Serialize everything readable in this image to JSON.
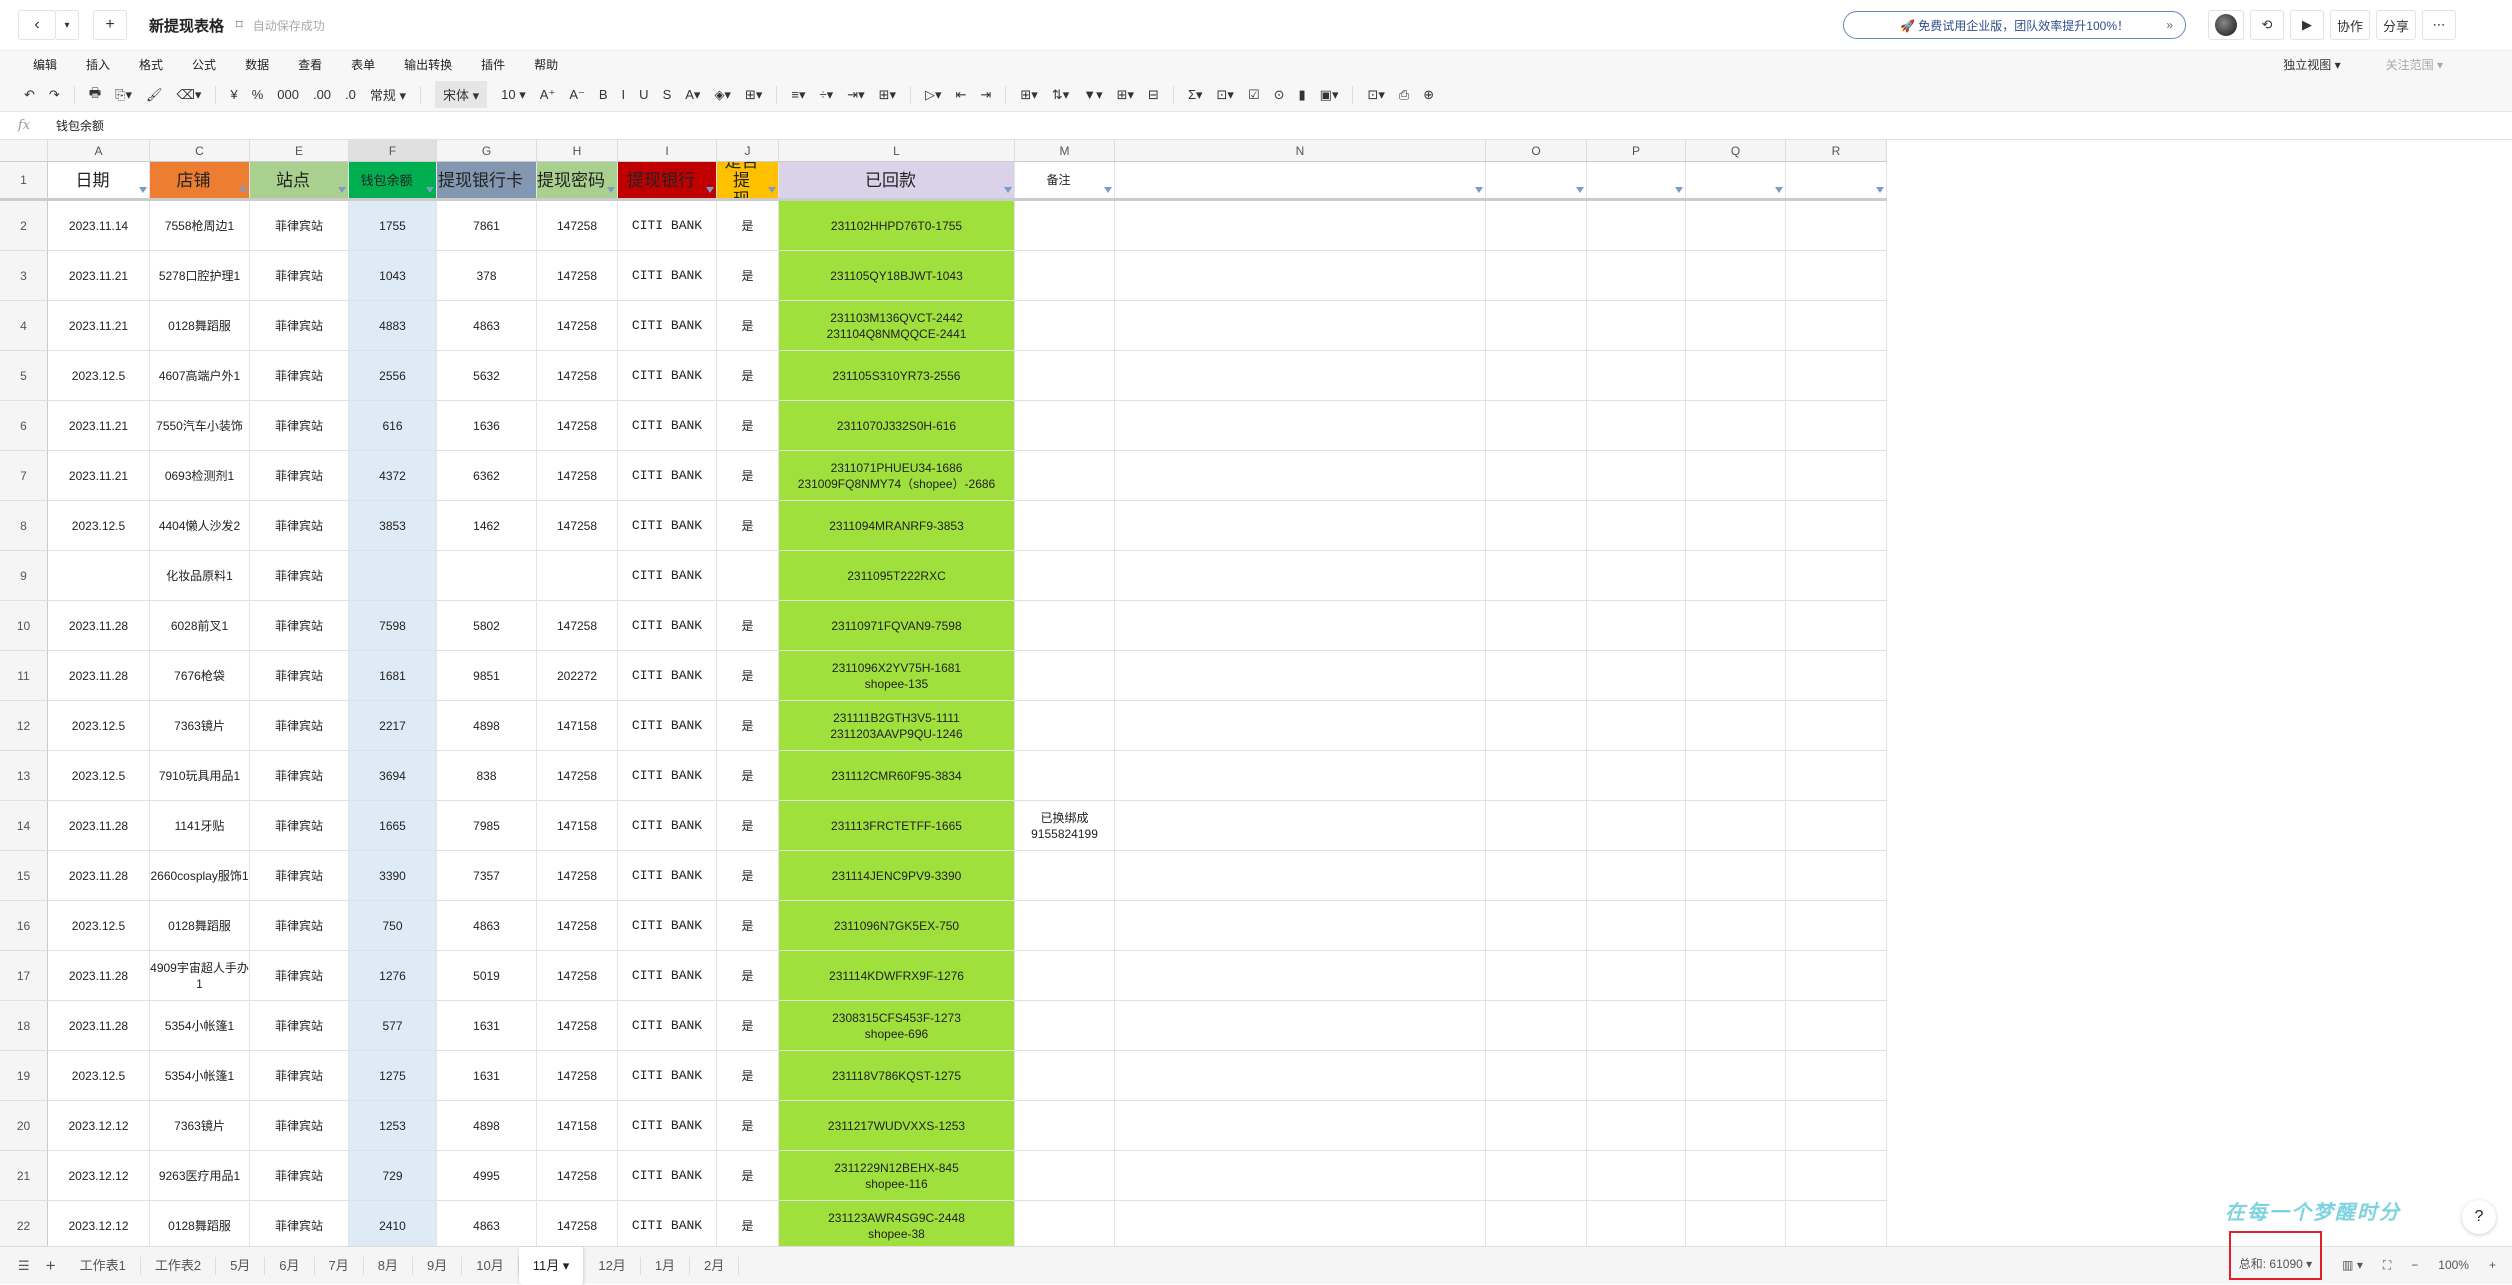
{
  "app": {
    "title": "新提现表格",
    "save_status": "自动保存成功",
    "back_icon": "‹",
    "dropdown_icon": "▾",
    "new_icon": "+",
    "bookmark_icon": "⌑"
  },
  "promo": {
    "text": "🚀 免费试用企业版，团队效率提升100%！",
    "arrow": "»"
  },
  "right_tools": {
    "history_icon": "⟲",
    "play_icon": "▶",
    "collab": "协作",
    "share": "分享",
    "more_icon": "⋯"
  },
  "menu": {
    "items": [
      "编辑",
      "插入",
      "格式",
      "公式",
      "数据",
      "查看",
      "表单",
      "输出转换",
      "插件",
      "帮助"
    ],
    "view": "独立视图 ▾",
    "focus": "关注范围 ▾"
  },
  "toolbar": {
    "items": [
      "↶",
      "↷",
      "|",
      "🖶",
      "⎘▾",
      "🖌",
      "⌫▾",
      "|",
      "¥",
      "%",
      "000",
      ".00",
      ".0",
      "常规 ▾",
      "|"
    ],
    "font": "宋体 ▾",
    "size": "10 ▾",
    "items2": [
      "A⁺",
      "A⁻",
      "B",
      "I",
      "U",
      "S",
      "A▾",
      "◈▾",
      "⊞▾",
      "|"
    ],
    "items3": [
      "≡▾",
      "÷▾",
      "⇥▾",
      "⊞▾",
      "|",
      "▷▾",
      "⇤",
      "⇥",
      "|",
      "⊞▾",
      "⇅▾",
      "▼▾",
      "⊞▾",
      "⊟",
      "|",
      "Σ▾",
      "⊡▾",
      "☑",
      "⊙",
      "▮",
      "▣▾",
      "|",
      "⊡▾",
      "⎙",
      "⊕"
    ]
  },
  "formula": {
    "fx": "fx",
    "value": "钱包余额"
  },
  "columns": [
    "A",
    "C",
    "E",
    "F",
    "G",
    "H",
    "I",
    "J",
    "L",
    "M",
    "N",
    "O",
    "P",
    "Q",
    "R"
  ],
  "header": [
    "日期",
    "店铺",
    "站点",
    "钱包余额",
    "提现银行卡",
    "提现密码",
    "提现银行",
    "是否提\n现",
    "已回款",
    "备注",
    "",
    "",
    "",
    "",
    ""
  ],
  "header_colors": [
    "#ffffff",
    "#ed7d31",
    "#a9d08e",
    "#00b050",
    "#8497b0",
    "#a9d08e",
    "#c00000",
    "#ffc000",
    "#d9d2e9",
    "#ffffff",
    "#ffffff",
    "#ffffff",
    "#ffffff",
    "#ffffff",
    "#ffffff"
  ],
  "paid_color": "#9fe03c",
  "selected_col_color": "#deebf7",
  "rows": [
    [
      "2023.11.14",
      "7558枪周边1",
      "菲律宾站",
      "1755",
      "7861",
      "147258",
      "CITI BANK",
      "是",
      "231102HHPD76T0-1755",
      ""
    ],
    [
      "2023.11.21",
      "5278口腔护理1",
      "菲律宾站",
      "1043",
      "378",
      "147258",
      "CITI BANK",
      "是",
      "231105QY18BJWT-1043",
      ""
    ],
    [
      "2023.11.21",
      "0128舞蹈服",
      "菲律宾站",
      "4883",
      "4863",
      "147258",
      "CITI BANK",
      "是",
      "231103M136QVCT-2442\n231104Q8NMQQCE-2441",
      ""
    ],
    [
      "2023.12.5",
      "4607高端户外1",
      "菲律宾站",
      "2556",
      "5632",
      "147258",
      "CITI BANK",
      "是",
      "231105S310YR73-2556",
      ""
    ],
    [
      "2023.11.21",
      "7550汽车小装饰",
      "菲律宾站",
      "616",
      "1636",
      "147258",
      "CITI BANK",
      "是",
      "2311070J332S0H-616",
      ""
    ],
    [
      "2023.11.21",
      "0693检测剂1",
      "菲律宾站",
      "4372",
      "6362",
      "147258",
      "CITI BANK",
      "是",
      "2311071PHUEU34-1686\n231009FQ8NMY74（shopee）-2686",
      ""
    ],
    [
      "2023.12.5",
      "4404懒人沙发2",
      "菲律宾站",
      "3853",
      "1462",
      "147258",
      "CITI BANK",
      "是",
      "2311094MRANRF9-3853",
      ""
    ],
    [
      "",
      "化妆品原料1",
      "菲律宾站",
      "",
      "",
      "",
      "CITI BANK",
      "",
      "2311095T222RXC",
      ""
    ],
    [
      "2023.11.28",
      "6028前叉1",
      "菲律宾站",
      "7598",
      "5802",
      "147258",
      "CITI BANK",
      "是",
      "23110971FQVAN9-7598",
      ""
    ],
    [
      "2023.11.28",
      "7676枪袋",
      "菲律宾站",
      "1681",
      "9851",
      "202272",
      "CITI BANK",
      "是",
      "2311096X2YV75H-1681\nshopee-135",
      ""
    ],
    [
      "2023.12.5",
      "7363镜片",
      "菲律宾站",
      "2217",
      "4898",
      "147158",
      "CITI BANK",
      "是",
      "231111B2GTH3V5-1111\n2311203AAVP9QU-1246",
      ""
    ],
    [
      "2023.12.5",
      "7910玩具用品1",
      "菲律宾站",
      "3694",
      "838",
      "147258",
      "CITI BANK",
      "是",
      "231112CMR60F95-3834",
      ""
    ],
    [
      "2023.11.28",
      "1141牙贴",
      "菲律宾站",
      "1665",
      "7985",
      "147158",
      "CITI BANK",
      "是",
      "231113FRCTETFF-1665",
      "已换绑成\n9155824199"
    ],
    [
      "2023.11.28",
      "2660cosplay服饰1",
      "菲律宾站",
      "3390",
      "7357",
      "147258",
      "CITI BANK",
      "是",
      "231114JENC9PV9-3390",
      ""
    ],
    [
      "2023.12.5",
      "0128舞蹈服",
      "菲律宾站",
      "750",
      "4863",
      "147258",
      "CITI BANK",
      "是",
      "2311096N7GK5EX-750",
      ""
    ],
    [
      "2023.11.28",
      "4909宇宙超人手办1",
      "菲律宾站",
      "1276",
      "5019",
      "147258",
      "CITI BANK",
      "是",
      "231114KDWFRX9F-1276",
      ""
    ],
    [
      "2023.11.28",
      "5354小帐篷1",
      "菲律宾站",
      "577",
      "1631",
      "147258",
      "CITI BANK",
      "是",
      "2308315CFS453F-1273\nshopee-696",
      ""
    ],
    [
      "2023.12.5",
      "5354小帐篷1",
      "菲律宾站",
      "1275",
      "1631",
      "147258",
      "CITI BANK",
      "是",
      "231118V786KQST-1275",
      ""
    ],
    [
      "2023.12.12",
      "7363镜片",
      "菲律宾站",
      "1253",
      "4898",
      "147158",
      "CITI BANK",
      "是",
      "2311217WUDVXXS-1253",
      ""
    ],
    [
      "2023.12.12",
      "9263医疗用品1",
      "菲律宾站",
      "729",
      "4995",
      "147258",
      "CITI BANK",
      "是",
      "2311229N12BEHX-845\nshopee-116",
      ""
    ],
    [
      "2023.12.12",
      "0128舞蹈服",
      "菲律宾站",
      "2410",
      "4863",
      "147258",
      "CITI BANK",
      "是",
      "231123AWR4SG9C-2448\nshopee-38",
      ""
    ]
  ],
  "sheet_tabs": {
    "list_icon": "☰",
    "add_icon": "+",
    "tabs": [
      "工作表1",
      "工作表2",
      "5月",
      "6月",
      "7月",
      "8月",
      "9月",
      "10月",
      "11月 ▾",
      "12月",
      "1月",
      "2月"
    ],
    "active": "11月 ▾"
  },
  "status": {
    "sum": "总和: 61090 ▾",
    "view_icon": "▥ ▾",
    "fit_icon": "⛶",
    "zoom_out": "−",
    "zoom": "100%",
    "zoom_in": "+"
  },
  "watermark": "在每一个梦醒时分",
  "help": "?"
}
